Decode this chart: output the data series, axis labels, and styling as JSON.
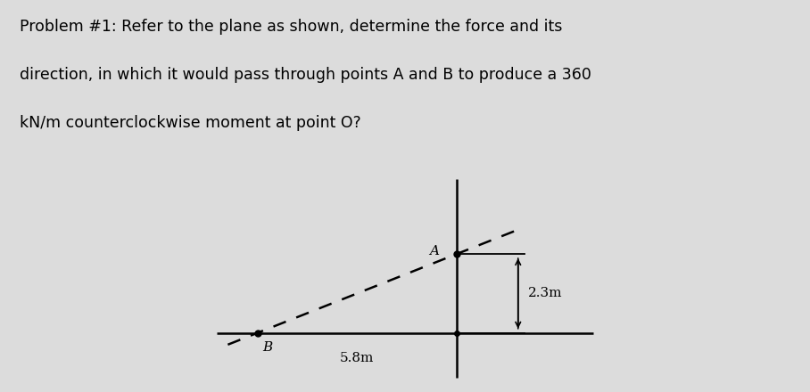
{
  "problem_text_line1": "Problem #1: Refer to the plane as shown, determine the force and its",
  "problem_text_line2": "direction, in which it would pass through points A and B to produce a 360",
  "problem_text_line3": "kN/m counterclockwise moment at point O?",
  "bg_color": "#dcdcdc",
  "text_box_bg": "#ffffff",
  "diagram_box_bg": "#ffffff",
  "label_B": "B",
  "label_A": "A",
  "dim_label_h": "5.8m",
  "dim_label_v": "2.3m"
}
